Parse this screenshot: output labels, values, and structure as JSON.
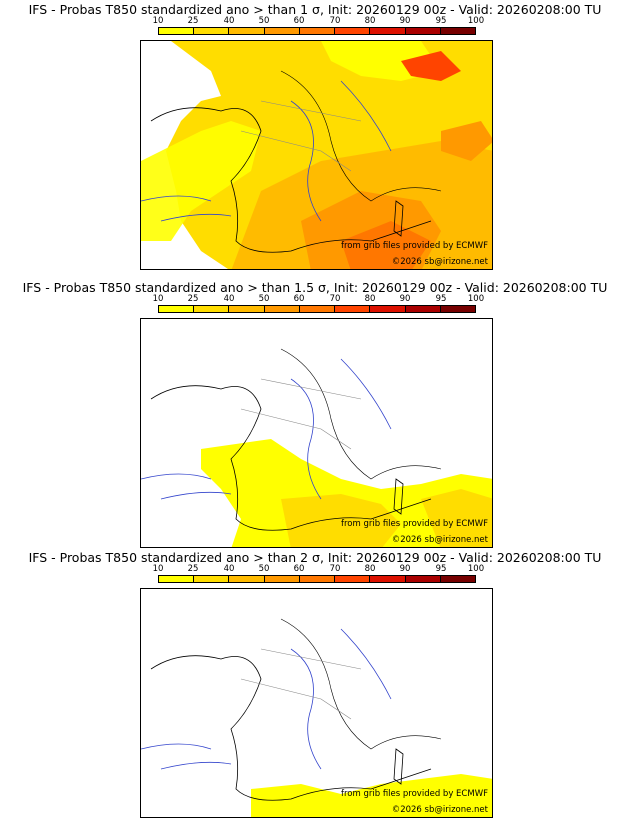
{
  "colorbar": {
    "ticks": [
      "10",
      "25",
      "40",
      "50",
      "60",
      "70",
      "80",
      "90",
      "95",
      "100"
    ],
    "colors": [
      "#ffff00",
      "#ffdd00",
      "#ffbb00",
      "#ff9900",
      "#ff7700",
      "#ff4400",
      "#dd1100",
      "#aa0000",
      "#770000"
    ]
  },
  "panels": [
    {
      "title": "IFS - Probas T850  standardized ano > than 1 σ, Init: 20260129 00z - Valid: 20260208:00 TU",
      "credit": "from grib files provided by ECMWF",
      "copyright": "©2026 sb@irizone.net",
      "coverage": "high"
    },
    {
      "title": "IFS - Probas T850  standardized ano > than 1.5 σ, Init: 20260129 00z - Valid: 20260208:00 TU",
      "credit": "from grib files provided by ECMWF",
      "copyright": "©2026 sb@irizone.net",
      "coverage": "medium"
    },
    {
      "title": "IFS - Probas T850  standardized ano > than 2 σ, Init: 20260129 00z - Valid: 20260208:00 TU",
      "credit": "from grib files provided by ECMWF",
      "copyright": "©2026 sb@irizone.net",
      "coverage": "low"
    }
  ]
}
